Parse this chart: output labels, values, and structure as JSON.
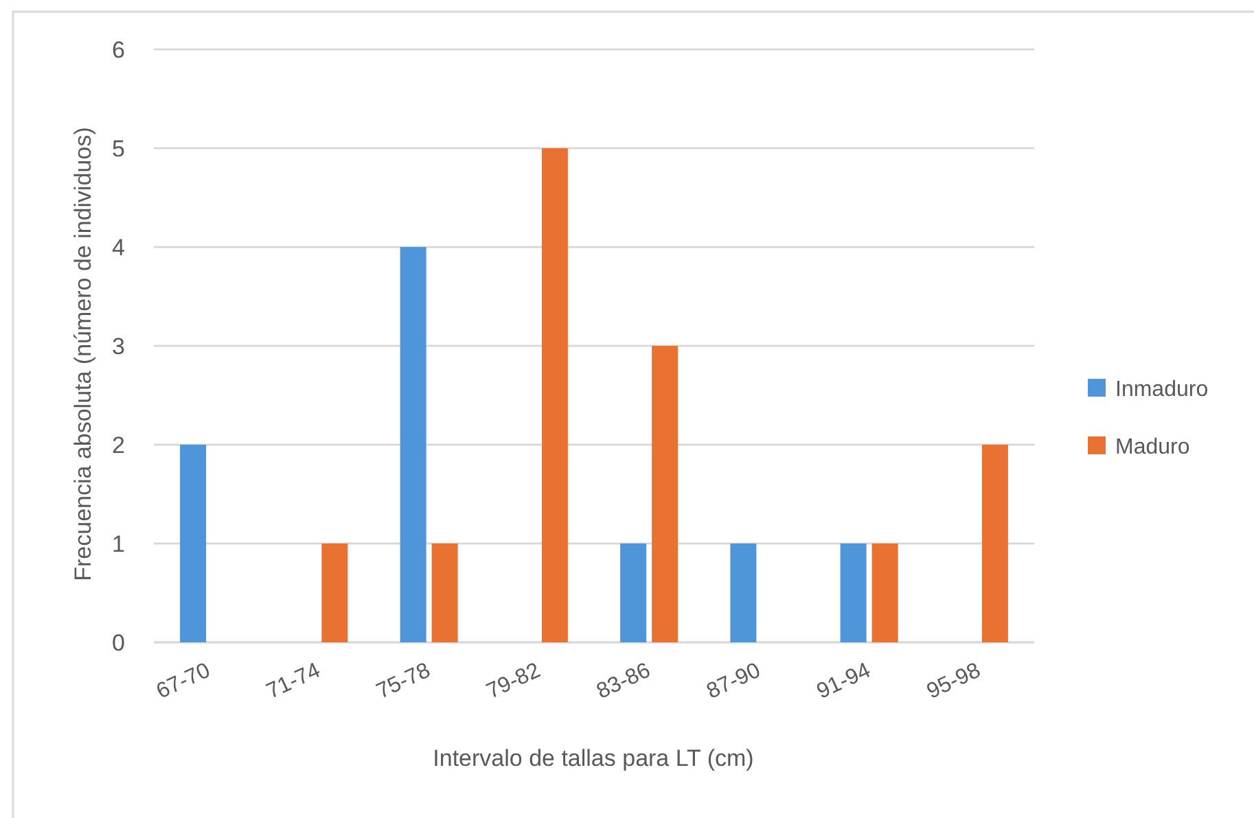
{
  "chart_data": {
    "type": "bar",
    "xlabel": "Intervalo de tallas para LT (cm)",
    "ylabel": "Frecuencia absoluta (número de individuos)",
    "categories": [
      "67-70",
      "71-74",
      "75-78",
      "79-82",
      "83-86",
      "87-90",
      "91-94",
      "95-98"
    ],
    "series": [
      {
        "name": "Inmaduro",
        "color": "#4e95d9",
        "values": [
          2,
          0,
          4,
          0,
          1,
          1,
          1,
          0
        ]
      },
      {
        "name": "Maduro",
        "color": "#e97132",
        "values": [
          0,
          1,
          1,
          5,
          3,
          0,
          1,
          2
        ]
      }
    ],
    "ylim": [
      0,
      6
    ],
    "yticks": [
      0,
      1,
      2,
      3,
      4,
      5,
      6
    ],
    "grid": "y",
    "legend": "right"
  }
}
